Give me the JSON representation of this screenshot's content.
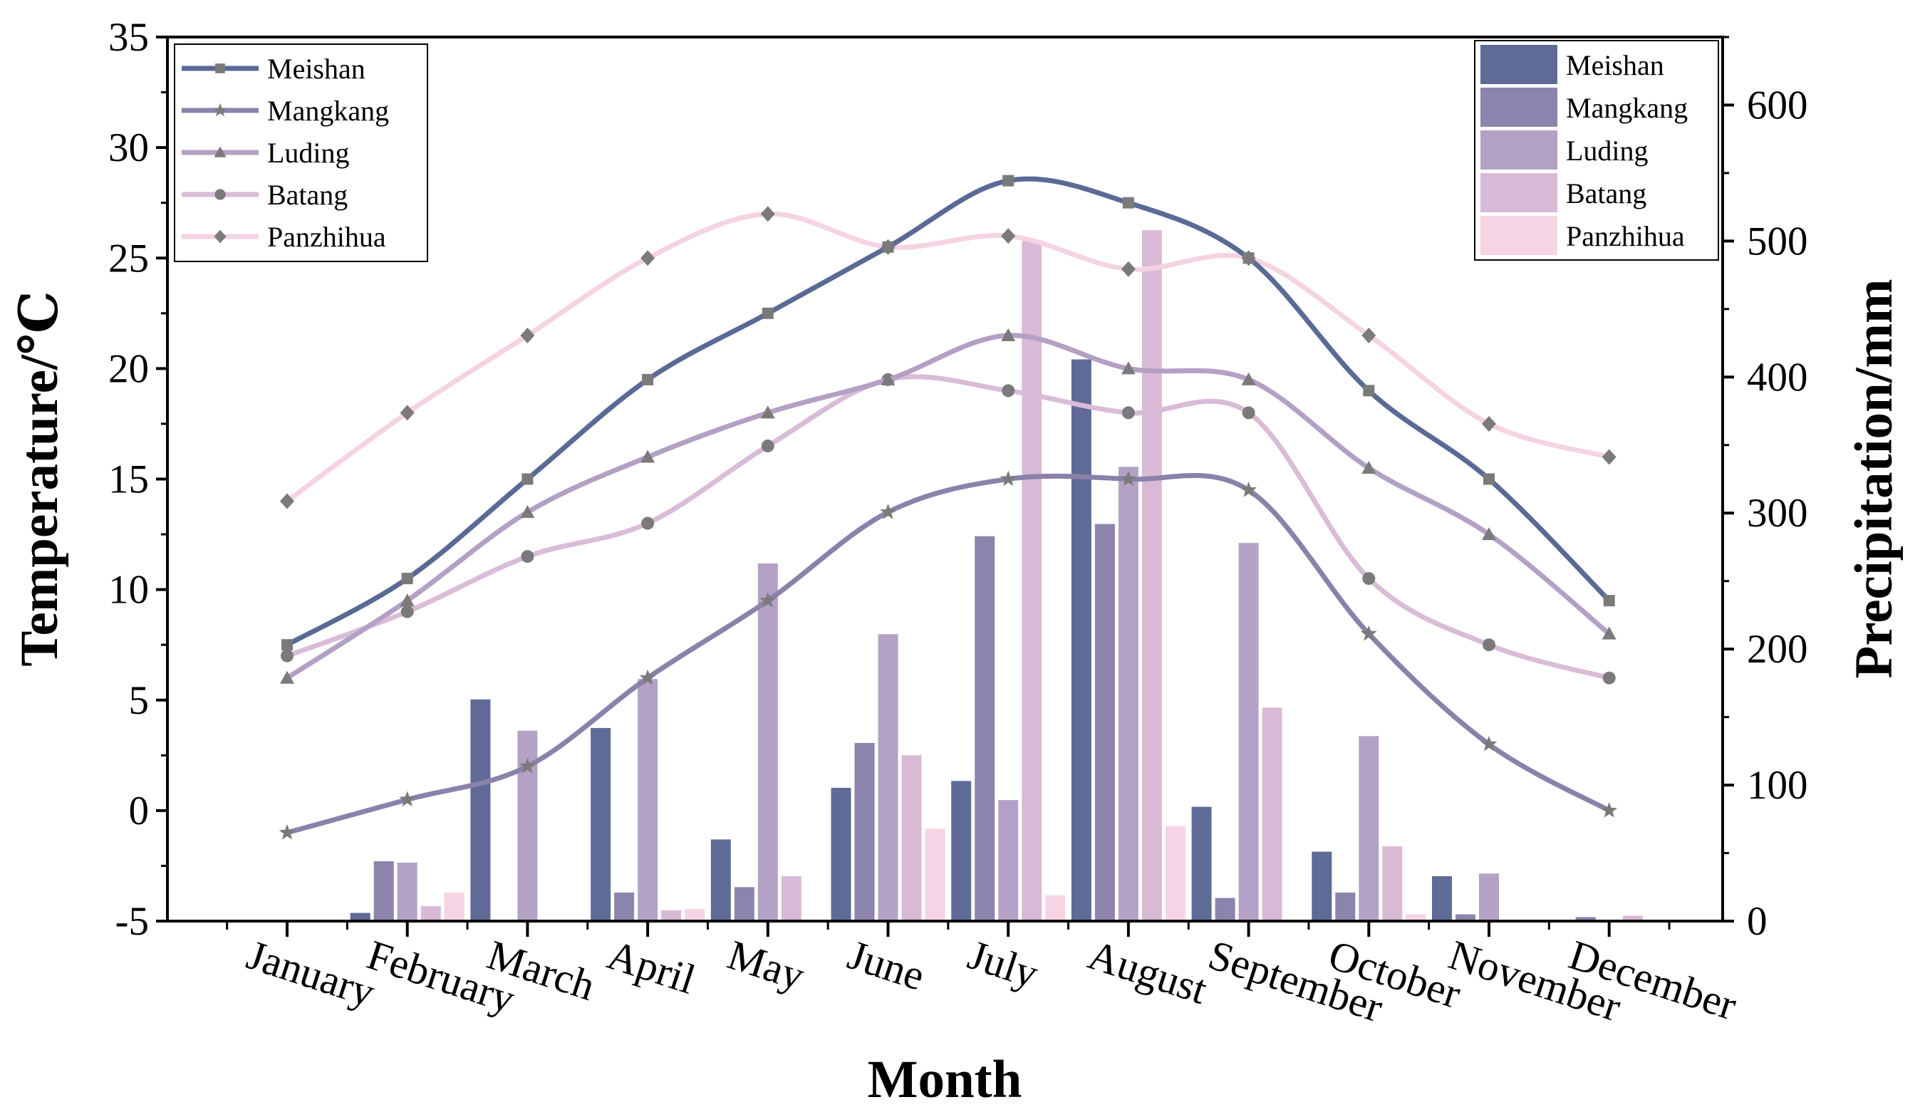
{
  "chart_data": {
    "type": "bar+line",
    "categories": [
      "January",
      "February",
      "March",
      "April",
      "May",
      "June",
      "July",
      "August",
      "September",
      "October",
      "November",
      "December"
    ],
    "xlabel": "Month",
    "ylabel_left": "Temperature/℃",
    "ylabel_right": "Precipitation/mm",
    "left_axis": {
      "min": -5,
      "max": 35,
      "ticks": [
        -5,
        0,
        5,
        10,
        15,
        20,
        25,
        30,
        35
      ]
    },
    "right_axis": {
      "min": 0,
      "max": 650,
      "ticks": [
        0,
        100,
        200,
        300,
        400,
        500,
        600
      ]
    },
    "temperature_series": [
      {
        "name": "Meishan",
        "color": "#5a6a96",
        "marker": "square",
        "values": [
          7.5,
          10.5,
          15.0,
          19.5,
          22.5,
          25.5,
          28.5,
          27.5,
          25.0,
          19.0,
          15.0,
          9.5
        ]
      },
      {
        "name": "Mangkang",
        "color": "#8a82aa",
        "marker": "star",
        "values": [
          -1.0,
          0.5,
          2.0,
          6.0,
          9.5,
          13.5,
          15.0,
          15.0,
          14.5,
          8.0,
          3.0,
          0.0
        ]
      },
      {
        "name": "Luding",
        "color": "#b3a0c4",
        "marker": "triangle",
        "values": [
          6.0,
          9.5,
          13.5,
          16.0,
          18.0,
          19.5,
          21.5,
          20.0,
          19.5,
          15.5,
          12.5,
          8.0
        ]
      },
      {
        "name": "Batang",
        "color": "#d9bcd8",
        "marker": "circle",
        "values": [
          7.0,
          9.0,
          11.5,
          13.0,
          16.5,
          19.5,
          19.0,
          18.0,
          18.0,
          10.5,
          7.5,
          6.0
        ]
      },
      {
        "name": "Panzhihua",
        "color": "#f5d3e3",
        "marker": "diamond",
        "values": [
          14.0,
          18.0,
          21.5,
          25.0,
          27.0,
          25.5,
          26.0,
          24.5,
          25.0,
          21.5,
          17.5,
          16.0
        ]
      }
    ],
    "precipitation_series": [
      {
        "name": "Meishan",
        "color": "#5f6a97",
        "values": [
          0,
          6,
          163,
          142,
          60,
          98,
          103,
          413,
          84,
          51,
          33,
          0
        ]
      },
      {
        "name": "Mangkang",
        "color": "#8c84ac",
        "values": [
          0,
          44,
          1,
          21,
          25,
          131,
          283,
          292,
          17,
          21,
          5,
          3
        ]
      },
      {
        "name": "Luding",
        "color": "#b4a2c6",
        "values": [
          1,
          43,
          140,
          178,
          263,
          211,
          89,
          334,
          278,
          136,
          35,
          1
        ]
      },
      {
        "name": "Batang",
        "color": "#d9bad6",
        "values": [
          0,
          11,
          1,
          8,
          33,
          122,
          500,
          508,
          157,
          55,
          0,
          4
        ]
      },
      {
        "name": "Panzhihua",
        "color": "#f6d4e4",
        "values": [
          0,
          21,
          0,
          9,
          0,
          68,
          19,
          70,
          0,
          5,
          0,
          0
        ]
      }
    ],
    "legend_left_position": "top-left",
    "legend_right_position": "top-right",
    "grid": false
  }
}
